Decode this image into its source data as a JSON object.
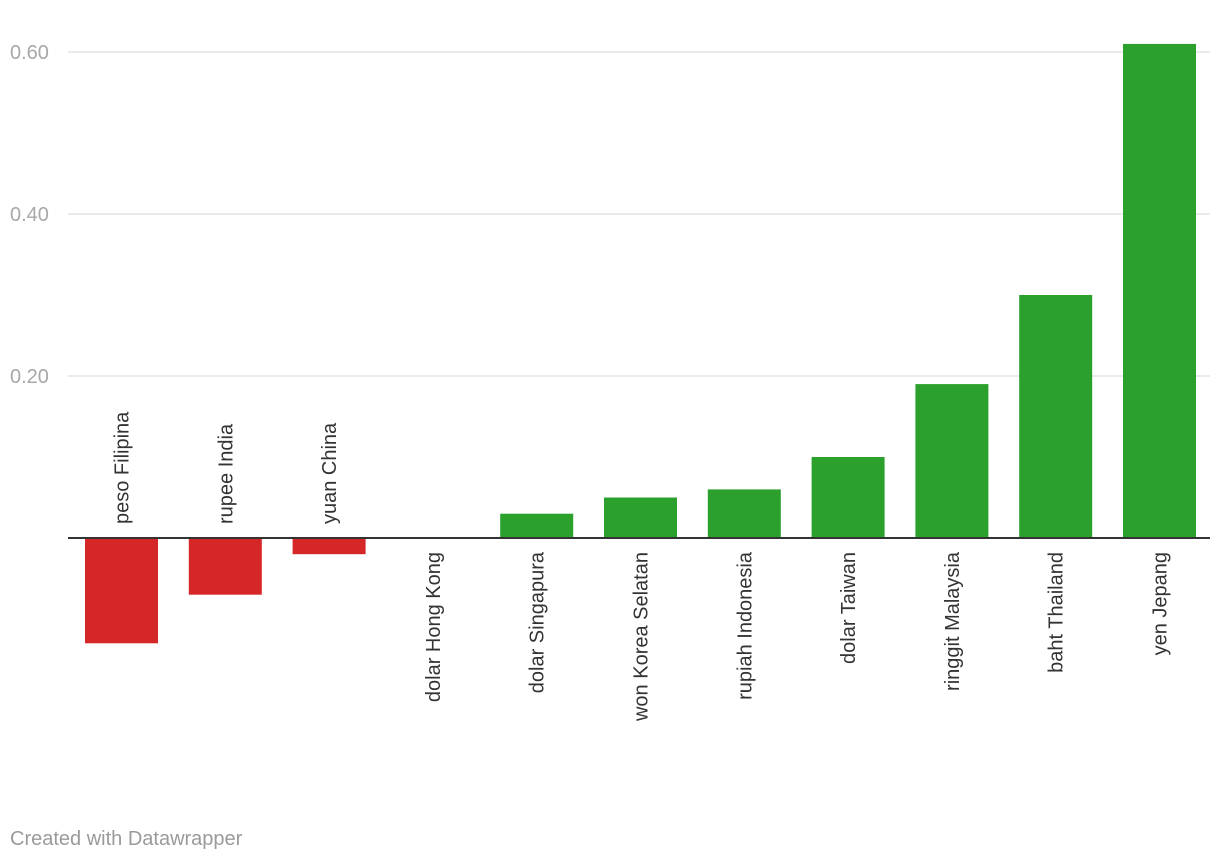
{
  "chart_data": {
    "type": "bar",
    "categories": [
      "peso Filipina",
      "rupee India",
      "yuan China",
      "dolar Hong Kong",
      "dolar Singapura",
      "won Korea Selatan",
      "rupiah Indonesia",
      "dolar Taiwan",
      "ringgit Malaysia",
      "baht Thailand",
      "yen Jepang"
    ],
    "values": [
      -0.13,
      -0.07,
      -0.02,
      0.0,
      0.03,
      0.05,
      0.06,
      0.1,
      0.19,
      0.3,
      0.61
    ],
    "yticks": [
      "0.60",
      "0.40",
      "0.20"
    ],
    "ytick_values": [
      0.6,
      0.4,
      0.2
    ],
    "ylim": [
      -0.2,
      0.65
    ],
    "colors": {
      "positive": "#2ca02c",
      "negative": "#d62728",
      "grid": "#e3e3e3",
      "zero_line": "#333333"
    },
    "grid": true,
    "legend": "none"
  },
  "footer": {
    "credit": "Created with Datawrapper"
  }
}
